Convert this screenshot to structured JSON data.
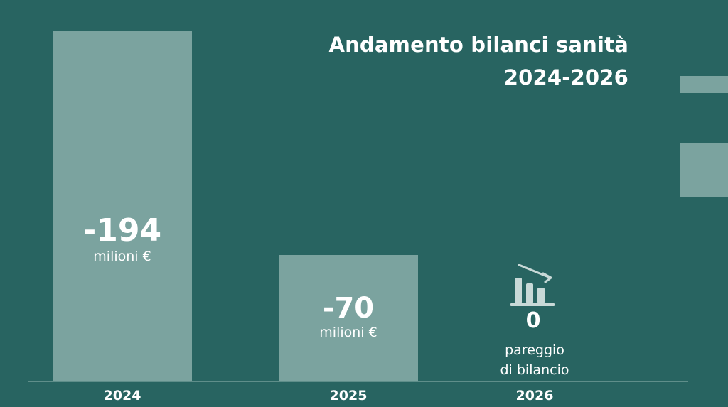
{
  "chart_data": {
    "type": "bar",
    "title": "Andamento bilanci sanità",
    "subtitle": "2024-2026",
    "categories": [
      "2024",
      "2025",
      "2026"
    ],
    "values": [
      -194,
      -70,
      0
    ],
    "value_labels": [
      "-194",
      "-70",
      "0"
    ],
    "unit": "milioni €",
    "break_even_label_line1": "pareggio",
    "break_even_label_line2": "di bilancio",
    "xlabel": "",
    "ylabel": "",
    "grid": false
  },
  "colors": {
    "background": "#286461",
    "bar": "#7ba39f",
    "text": "#ffffff"
  },
  "icons": {
    "break_even": "declining-bar-chart-icon"
  }
}
